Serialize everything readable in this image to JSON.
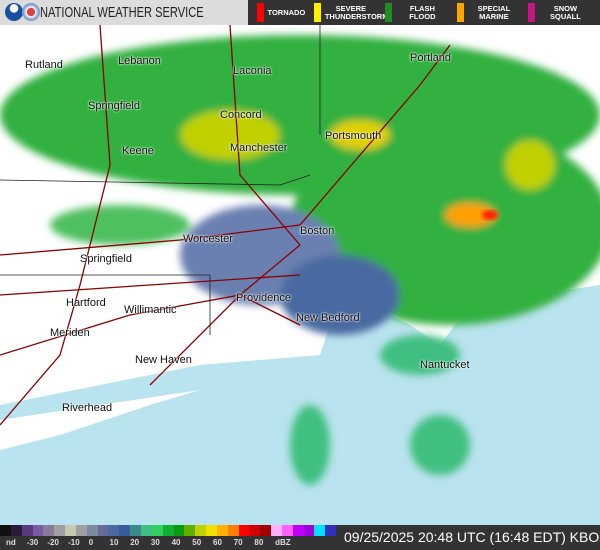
{
  "header": {
    "title": "NATIONAL WEATHER SERVICE",
    "logos": [
      "noaa-logo",
      "nws-logo"
    ]
  },
  "warnings": [
    {
      "label": "TORNADO",
      "color": "#ff0000"
    },
    {
      "label": "SEVERE THUNDERSTORM",
      "color": "#ffee00"
    },
    {
      "label": "FLASH FLOOD",
      "color": "#228b22"
    },
    {
      "label": "SPECIAL MARINE",
      "color": "#ffa500"
    },
    {
      "label": "SNOW SQUALL",
      "color": "#c71585"
    }
  ],
  "cities": [
    "Rutland",
    "Lebanon",
    "Laconia",
    "Springfield",
    "Concord",
    "Keene",
    "Manchester",
    "Portsmouth",
    "Portland",
    "Worcester",
    "Boston",
    "Springfield",
    "Hartford",
    "Providence",
    "Willimantic",
    "New Bedford",
    "Meriden",
    "New Haven",
    "Nantucket",
    "Riverhead"
  ],
  "legend": {
    "ticks": [
      "nd",
      "-30",
      "-20",
      "-10",
      "0",
      "10",
      "20",
      "30",
      "40",
      "50",
      "60",
      "70",
      "80",
      "dBZ"
    ],
    "colors": [
      "#111",
      "#2a1a3a",
      "#5a3a7a",
      "#7a5aa0",
      "#8a7aa0",
      "#a0a0a0",
      "#c8c8b0",
      "#a0a0a0",
      "#7a8aa0",
      "#6a6a9a",
      "#4a6aa0",
      "#3a5aa0",
      "#3a8a8a",
      "#40c080",
      "#30d060",
      "#10b030",
      "#0a9a10",
      "#60b000",
      "#c0d000",
      "#f0e000",
      "#ffb000",
      "#ff8000",
      "#ff0000",
      "#d00000",
      "#a00000",
      "#ffb0ff",
      "#ff60ff",
      "#c000ff",
      "#a000e0",
      "#00e0ff",
      "#3030c0"
    ]
  },
  "timestamp": "09/25/2025 20:48 UTC (16:48 EDT) KBOX"
}
